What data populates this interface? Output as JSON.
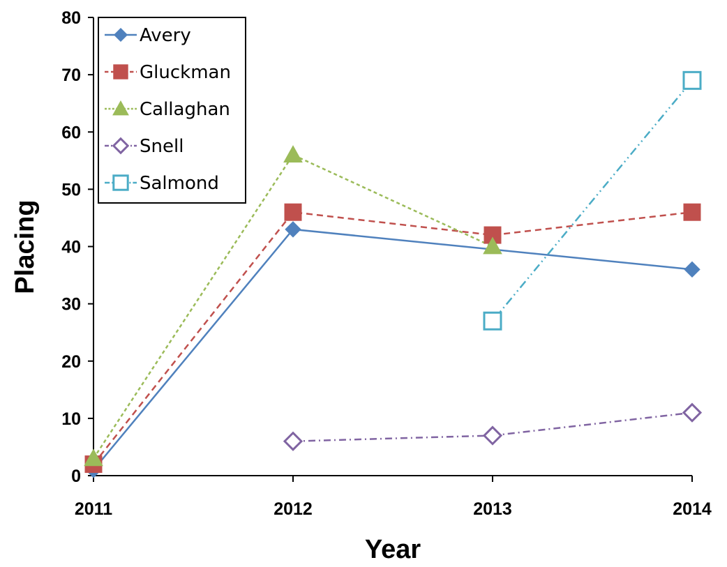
{
  "chart_data": {
    "type": "line",
    "xlabel": "Year",
    "ylabel": "Placing",
    "x": [
      "2011",
      "2012",
      "2013",
      "2014"
    ],
    "ylim": [
      0,
      80
    ],
    "yticks": [
      0,
      10,
      20,
      30,
      40,
      50,
      60,
      70,
      80
    ],
    "grid": false,
    "legend_position": "top-left",
    "series": [
      {
        "name": "Avery",
        "values": [
          1,
          43,
          null,
          36
        ],
        "color": "#4F81BD",
        "marker": "diamond",
        "line": "solid"
      },
      {
        "name": "Gluckman",
        "values": [
          2,
          46,
          42,
          46
        ],
        "color": "#C0504D",
        "marker": "square",
        "line": "dashed"
      },
      {
        "name": "Callaghan",
        "values": [
          3,
          56,
          40,
          null
        ],
        "color": "#9BBB59",
        "marker": "triangle",
        "line": "short-dashed"
      },
      {
        "name": "Snell",
        "values": [
          null,
          6,
          7,
          11
        ],
        "color": "#8064A2",
        "marker": "diamond-open",
        "line": "dash-dot"
      },
      {
        "name": "Salmond",
        "values": [
          null,
          null,
          27,
          69
        ],
        "color": "#4BACC6",
        "marker": "square-open",
        "line": "dash-dot-dot"
      }
    ]
  }
}
